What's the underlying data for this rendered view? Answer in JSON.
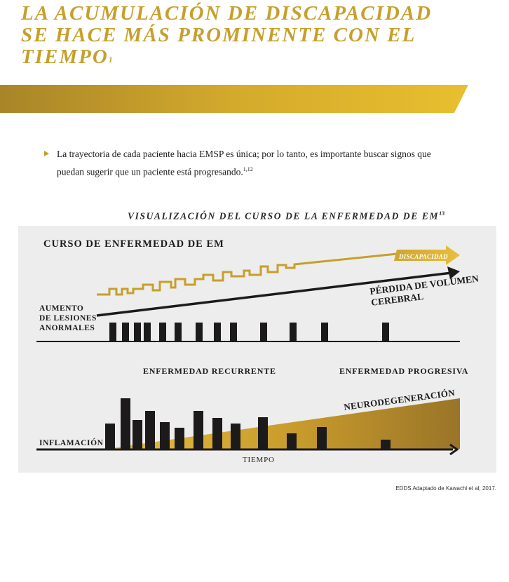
{
  "header": {
    "title_line1": "LA ACUMULACIÓN DE DISCAPACIDAD",
    "title_line2": "SE HACE MÁS PROMINENTE CON EL",
    "title_line3": "TIEMPO",
    "title_ref": "1",
    "accent_color": "#c79f2a"
  },
  "bullet": {
    "text": "La trayectoria de cada paciente hacia EMSP es única; por lo tanto, es importante buscar signos que puedan sugerir que un paciente está progresando.",
    "ref": "1,12"
  },
  "section": {
    "title": "VISUALIZACIÓN DEL CURSO DE LA ENFERMEDAD DE EM",
    "ref": "13"
  },
  "diagram": {
    "heading": "CURSO DE ENFERMEDAD DE EM",
    "labels": {
      "disability": "DISCAPACIDAD",
      "brain_volume_loss_1": "PÉRDIDA DE VOLUMEN",
      "brain_volume_loss_2": "CEREBRAL",
      "lesions_1": "AUMENTO",
      "lesions_2": "DE LESIONES",
      "lesions_3": "ANORMALES",
      "relapsing": "ENFERMEDAD RECURRENTE",
      "progressive": "ENFERMEDAD PROGRESIVA",
      "neurodegeneration": "NEURODEGENERACIÓN",
      "inflammation": "INFLAMACIÓN",
      "time": "TIEMPO"
    },
    "colors": {
      "gold": "#c79f2a",
      "gold_light": "#e8c040",
      "gold_dark": "#9a7428",
      "bars": "#1c1a1a",
      "background": "#ededed"
    }
  },
  "footer": {
    "source": "EDDS Adaptado de Kawachi et al, 2017."
  }
}
